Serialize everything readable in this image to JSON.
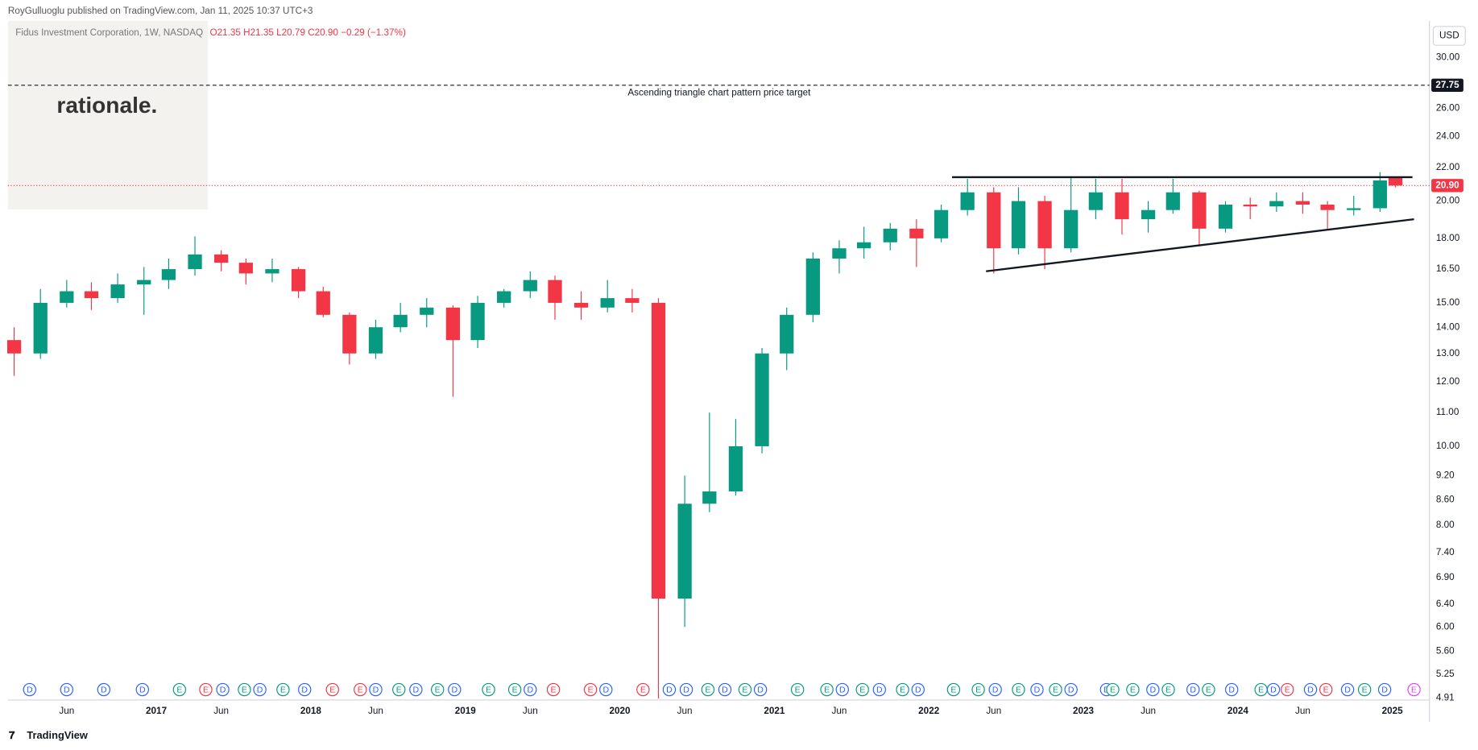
{
  "header": {
    "publisher": "RoyGulluoglu published on TradingView.com, Jan 11, 2025 10:37 UTC+3",
    "symbol": "Fidus Investment Corporation, 1W, NASDAQ",
    "ohlc": "O21.35 H21.35 L20.79 C20.90 −0.29 (−1.37%)",
    "watermark": "rationale.",
    "currency": "USD",
    "footer": "TradingView"
  },
  "chart_data": {
    "type": "candlestick",
    "x": [
      2016.08,
      2016.25,
      2016.42,
      2016.58,
      2016.75,
      2016.92,
      2017.08,
      2017.25,
      2017.42,
      2017.58,
      2017.75,
      2017.92,
      2018.08,
      2018.25,
      2018.42,
      2018.58,
      2018.75,
      2018.92,
      2019.08,
      2019.25,
      2019.42,
      2019.58,
      2019.75,
      2019.92,
      2020.08,
      2020.25,
      2020.42,
      2020.58,
      2020.75,
      2020.92,
      2021.08,
      2021.25,
      2021.42,
      2021.58,
      2021.75,
      2021.92,
      2022.08,
      2022.25,
      2022.42,
      2022.58,
      2022.75,
      2022.92,
      2023.08,
      2023.25,
      2023.42,
      2023.58,
      2023.75,
      2023.92,
      2024.08,
      2024.25,
      2024.42,
      2024.58,
      2024.75,
      2024.92,
      2025.02
    ],
    "open": [
      13.5,
      13,
      15,
      15.5,
      15.2,
      15.8,
      16,
      16.5,
      17.2,
      16.8,
      16.3,
      16.5,
      15.5,
      14.5,
      13,
      14,
      14.5,
      14.8,
      13.5,
      15,
      15.5,
      16,
      15,
      14.8,
      15.2,
      15,
      6.5,
      8.5,
      8.8,
      10,
      13,
      14.5,
      17,
      17.5,
      17.8,
      18.5,
      18,
      19.5,
      20.5,
      17.5,
      20,
      17.5,
      19.5,
      20.5,
      19,
      19.5,
      20.5,
      18.5,
      19.8,
      19.7,
      20,
      19.8,
      19.5,
      19.6,
      21.35
    ],
    "high": [
      14,
      15.6,
      16,
      15.9,
      16.3,
      16.6,
      17,
      18.1,
      17.4,
      17,
      17,
      16.6,
      15.7,
      14.6,
      14.3,
      15,
      15.2,
      14.9,
      15.3,
      15.6,
      16.4,
      16.2,
      15.5,
      16,
      15.6,
      15.2,
      9.2,
      11,
      10.8,
      13.2,
      14.8,
      17.3,
      17.9,
      18.6,
      18.8,
      19,
      19.8,
      21.3,
      20.8,
      20.8,
      20.3,
      21.4,
      21.3,
      21.3,
      20,
      21.3,
      20.6,
      20,
      20.2,
      20.5,
      20.5,
      20,
      20.3,
      21.7,
      21.35
    ],
    "low": [
      12.2,
      12.8,
      14.8,
      14.7,
      15,
      14.5,
      15.6,
      16.2,
      16.4,
      15.8,
      15.9,
      15.2,
      14.4,
      12.6,
      12.8,
      13.8,
      14,
      11.5,
      13.2,
      14.8,
      15.2,
      14.3,
      14.3,
      14.6,
      14.6,
      4.9,
      6,
      8.3,
      8.7,
      9.8,
      12.4,
      14.2,
      16.3,
      17,
      17.4,
      16.6,
      17.8,
      19.2,
      16.3,
      17.2,
      16.5,
      17.3,
      19,
      18.2,
      18.3,
      19.3,
      17.6,
      18.3,
      19,
      19.4,
      19.3,
      18.5,
      19.2,
      19.4,
      20.79
    ],
    "close": [
      13,
      15,
      15.5,
      15.2,
      15.8,
      16,
      16.5,
      17.2,
      16.8,
      16.3,
      16.5,
      15.5,
      14.5,
      13,
      14,
      14.5,
      14.8,
      13.5,
      15,
      15.5,
      16,
      15,
      14.8,
      15.2,
      15,
      6.5,
      8.5,
      8.8,
      10,
      13,
      14.5,
      17,
      17.5,
      17.8,
      18.5,
      18,
      19.5,
      20.5,
      17.5,
      20,
      17.5,
      19.5,
      20.5,
      19,
      19.5,
      20.5,
      18.5,
      19.8,
      19.7,
      20,
      19.8,
      19.5,
      19.6,
      21.2,
      20.9
    ],
    "up_color": "#089981",
    "down_color": "#f23645",
    "log_scale": true,
    "grid": false,
    "xlim": [
      2016.04,
      2025.24
    ],
    "xticks": [
      {
        "value": 2016.42,
        "label": "Jun"
      },
      2017,
      {
        "value": 2017.42,
        "label": "Jun"
      },
      2018,
      {
        "value": 2018.42,
        "label": "Jun"
      },
      2019,
      {
        "value": 2019.42,
        "label": "Jun"
      },
      2020,
      {
        "value": 2020.42,
        "label": "Jun"
      },
      2021,
      {
        "value": 2021.42,
        "label": "Jun"
      },
      2022,
      {
        "value": 2022.42,
        "label": "Jun"
      },
      2023,
      {
        "value": 2023.42,
        "label": "Jun"
      },
      2024,
      {
        "value": 2024.42,
        "label": "Jun"
      },
      2025
    ],
    "ylim": [
      4.88,
      33.3
    ],
    "yticks": [
      4.91,
      5.25,
      {
        "value": 5.6,
        "label": "5.60"
      },
      {
        "value": 6,
        "label": "6.00"
      },
      {
        "value": 6.4,
        "label": "6.40"
      },
      {
        "value": 6.9,
        "label": "6.90"
      },
      {
        "value": 7.4,
        "label": "7.40"
      },
      {
        "value": 8,
        "label": "8.00"
      },
      {
        "value": 8.6,
        "label": "8.60"
      },
      {
        "value": 9.2,
        "label": "9.20"
      },
      {
        "value": 10,
        "label": "10.00"
      },
      {
        "value": 11,
        "label": "11.00"
      },
      {
        "value": 12,
        "label": "12.00"
      },
      {
        "value": 13,
        "label": "13.00"
      },
      {
        "value": 14,
        "label": "14.00"
      },
      {
        "value": 15,
        "label": "15.00"
      },
      {
        "value": 16.5,
        "label": "16.50"
      },
      {
        "value": 18,
        "label": "18.00"
      },
      {
        "value": 20,
        "label": "20.00"
      },
      {
        "value": 22,
        "label": "22.00"
      },
      {
        "value": 24,
        "label": "24.00"
      },
      {
        "value": 26,
        "label": "26.00"
      },
      {
        "value": 30,
        "label": "30.00"
      }
    ],
    "target": {
      "value": 27.75,
      "text": "Ascending triangle chart pattern price target"
    },
    "last_price": {
      "value": 20.9,
      "label": "20.90"
    },
    "trendlines": [
      {
        "x": [
          2022.15,
          2025.13
        ],
        "y": [
          21.4,
          21.4
        ]
      },
      {
        "x": [
          2022.37,
          2025.14
        ],
        "y": [
          16.4,
          19.0
        ]
      }
    ],
    "events": {
      "x": [
        2016.18,
        2016.42,
        2016.66,
        2016.91,
        2017.15,
        2017.32,
        2017.43,
        2017.57,
        2017.67,
        2017.82,
        2017.96,
        2018.14,
        2018.32,
        2018.42,
        2018.57,
        2018.68,
        2018.82,
        2018.93,
        2019.15,
        2019.32,
        2019.42,
        2019.57,
        2019.81,
        2019.91,
        2020.15,
        2020.32,
        2020.43,
        2020.57,
        2020.68,
        2020.81,
        2020.91,
        2021.15,
        2021.34,
        2021.44,
        2021.57,
        2021.68,
        2021.83,
        2021.93,
        2022.16,
        2022.32,
        2022.43,
        2022.58,
        2022.7,
        2022.82,
        2022.92,
        2023.15,
        2023.19,
        2023.32,
        2023.45,
        2023.55,
        2023.71,
        2023.81,
        2023.96,
        2024.15,
        2024.23,
        2024.32,
        2024.47,
        2024.57,
        2024.71,
        2024.82,
        2024.95,
        2025.14
      ],
      "labels": [
        "D",
        "D",
        "D",
        "D",
        "E",
        "E",
        "D",
        "E",
        "D",
        "E",
        "D",
        "E",
        "E",
        "D",
        "E",
        "D",
        "E",
        "D",
        "E",
        "E",
        "D",
        "E",
        "E",
        "D",
        "E",
        "D",
        "D",
        "E",
        "D",
        "E",
        "D",
        "E",
        "E",
        "D",
        "E",
        "D",
        "E",
        "D",
        "E",
        "E",
        "D",
        "E",
        "D",
        "E",
        "D",
        "D",
        "E",
        "E",
        "D",
        "E",
        "D",
        "E",
        "D",
        "E",
        "D",
        "E",
        "D",
        "E",
        "D",
        "E",
        "D",
        "E"
      ],
      "colors": [
        "#2962ff",
        "#2962ff",
        "#2962ff",
        "#2962ff",
        "#089981",
        "#f23645",
        "#2962ff",
        "#089981",
        "#2962ff",
        "#089981",
        "#2962ff",
        "#f23645",
        "#f23645",
        "#2962ff",
        "#089981",
        "#2962ff",
        "#089981",
        "#2962ff",
        "#089981",
        "#089981",
        "#2962ff",
        "#f23645",
        "#f23645",
        "#2962ff",
        "#f23645",
        "#2962ff",
        "#2962ff",
        "#089981",
        "#2962ff",
        "#089981",
        "#2962ff",
        "#089981",
        "#089981",
        "#2962ff",
        "#089981",
        "#2962ff",
        "#089981",
        "#2962ff",
        "#089981",
        "#089981",
        "#2962ff",
        "#089981",
        "#2962ff",
        "#089981",
        "#2962ff",
        "#2962ff",
        "#089981",
        "#089981",
        "#2962ff",
        "#089981",
        "#2962ff",
        "#089981",
        "#2962ff",
        "#089981",
        "#2962ff",
        "#f23645",
        "#2962ff",
        "#f23645",
        "#2962ff",
        "#089981",
        "#2962ff",
        "#e040fb"
      ]
    }
  }
}
